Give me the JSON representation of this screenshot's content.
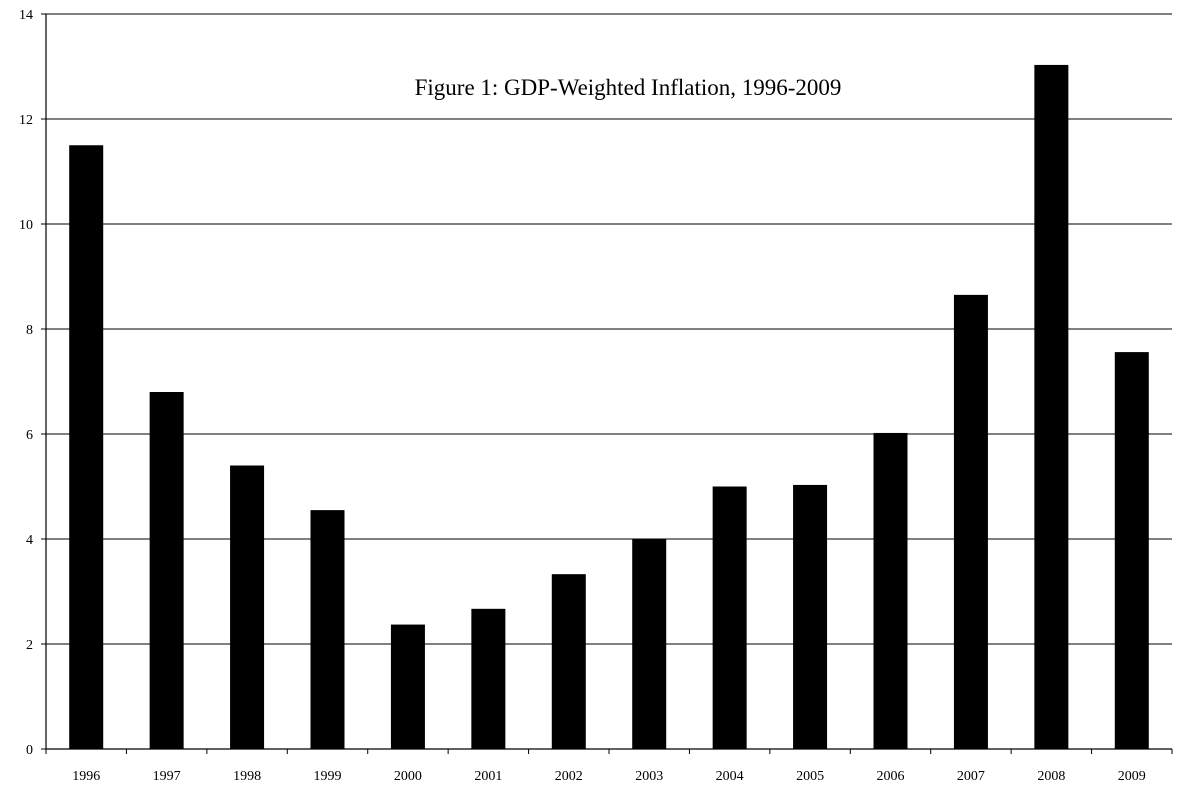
{
  "chart_data": {
    "type": "bar",
    "title": "Figure 1: GDP-Weighted Inflation, 1996-2009",
    "xlabel": "",
    "ylabel": "",
    "categories": [
      "1996",
      "1997",
      "1998",
      "1999",
      "2000",
      "2001",
      "2002",
      "2003",
      "2004",
      "2005",
      "2006",
      "2007",
      "2008",
      "2009"
    ],
    "values": [
      11.5,
      6.8,
      5.4,
      4.55,
      2.37,
      2.67,
      3.33,
      4.0,
      5.0,
      5.03,
      6.02,
      8.65,
      13.03,
      7.56
    ],
    "ylim": [
      0,
      14
    ],
    "yticks": [
      0,
      2,
      4,
      6,
      8,
      10,
      12,
      14
    ],
    "ytick_labels": [
      "0",
      "2",
      "4",
      "6",
      "8",
      "10",
      "12",
      "14"
    ],
    "grid": "horizontal",
    "legend": "none",
    "bar_color": "#000000"
  }
}
